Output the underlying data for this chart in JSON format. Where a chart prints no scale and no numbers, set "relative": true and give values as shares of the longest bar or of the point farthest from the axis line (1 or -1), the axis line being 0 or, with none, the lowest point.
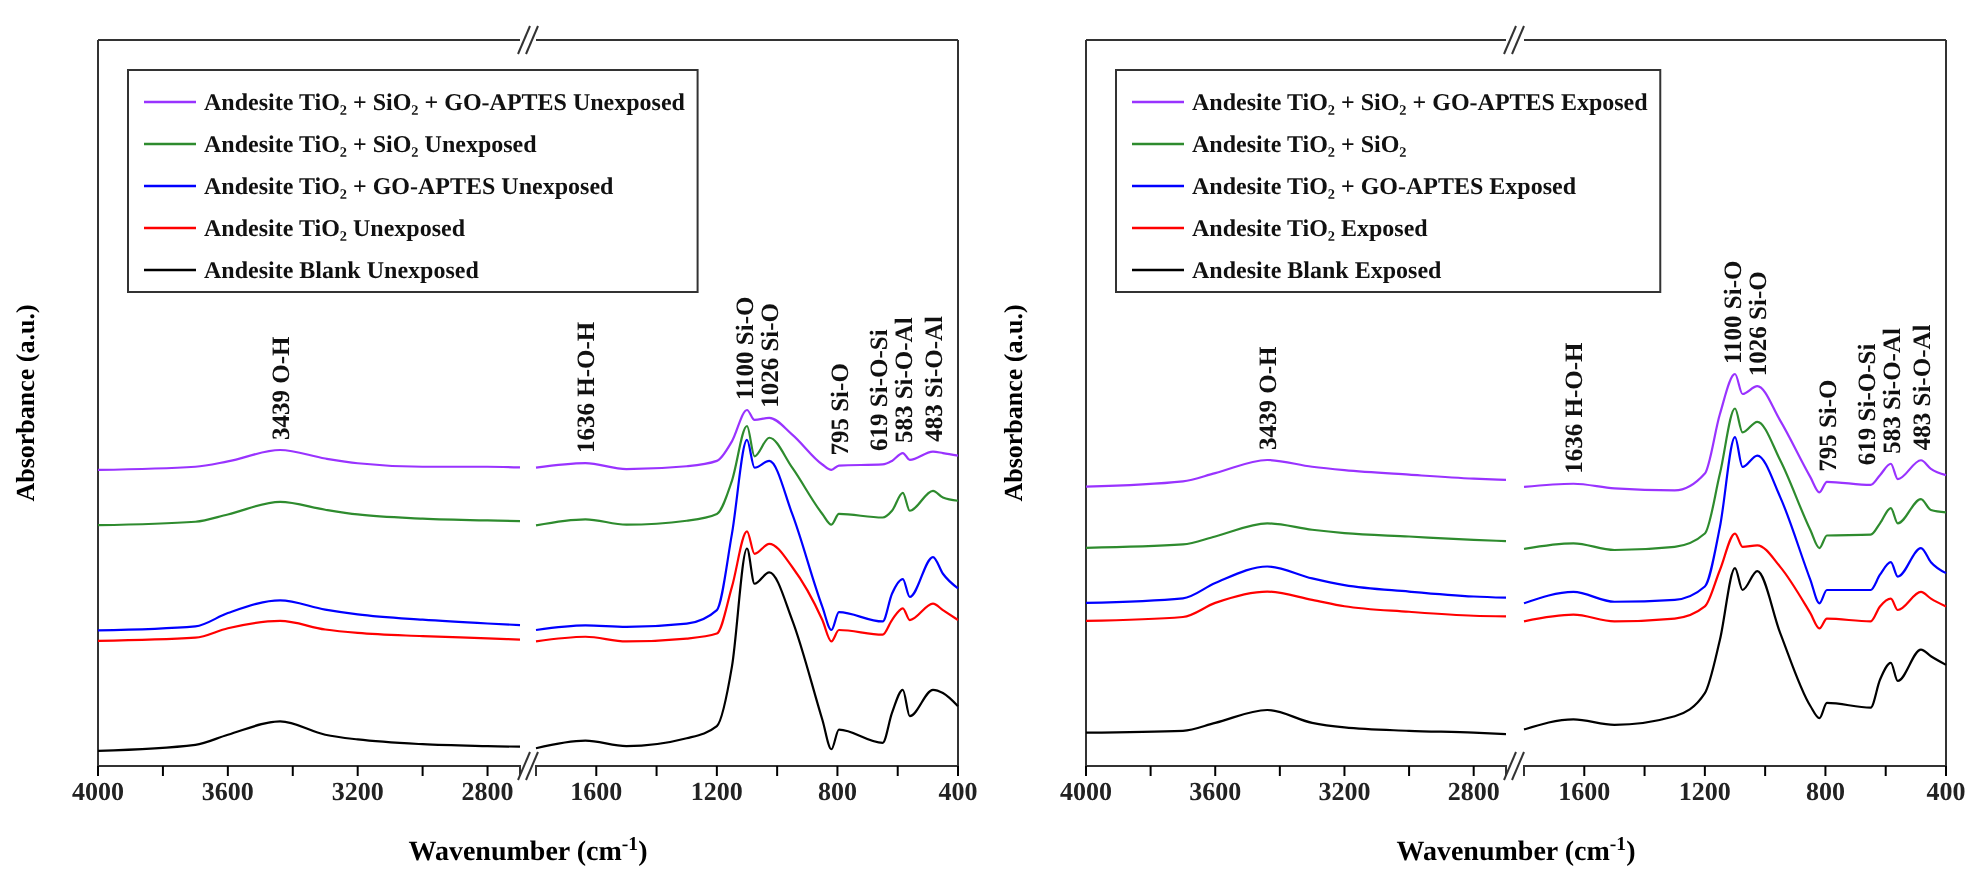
{
  "chart_data": [
    {
      "type": "line",
      "relative": true,
      "ylabel": "Absorbance (a.u.)",
      "xlabel": "Wavenumber (cm$^{-1}$)",
      "legend": "top right",
      "xlim": [
        4000,
        2700
      ],
      "xticks": [
        4000,
        {
          "value": 3800,
          "label": null
        },
        3600,
        {
          "value": 3400,
          "label": null
        },
        3200,
        {
          "value": 3000,
          "label": null
        },
        2800
      ],
      "x": [
        4000,
        3700,
        3600,
        3439,
        3300,
        3200,
        3000,
        2800,
        2700
      ],
      "series": [
        {
          "name": "Andesite TiO₂ + SiO₂ + GO-APTES Unexposed",
          "color": "#9933ff",
          "values": [
            0.937,
            0.947,
            0.964,
            1,
            0.973,
            0.958,
            0.947,
            0.947,
            0.945
          ]
        },
        {
          "name": "Andesite TiO₂ + SiO₂ Unexposed",
          "color": "#2e8b2e",
          "values": [
            0.762,
            0.773,
            0.796,
            0.836,
            0.811,
            0.796,
            0.783,
            0.777,
            0.775
          ]
        },
        {
          "name": "Andesite TiO₂ + GO-APTES Unexposed",
          "color": "#0000ff",
          "values": [
            0.429,
            0.442,
            0.484,
            0.524,
            0.495,
            0.48,
            0.463,
            0.451,
            0.446
          ]
        },
        {
          "name": "Andesite TiO₂ Unexposed",
          "color": "#ff0000",
          "values": [
            0.396,
            0.406,
            0.436,
            0.459,
            0.432,
            0.421,
            0.411,
            0.404,
            0.4
          ]
        },
        {
          "name": "Andesite Blank Unexposed",
          "color": "#000000",
          "values": [
            0.048,
            0.067,
            0.099,
            0.141,
            0.099,
            0.084,
            0.069,
            0.063,
            0.061
          ]
        }
      ],
      "annotations": [
        {
          "text": "3439 O-H",
          "x": 3439,
          "y": 1
        }
      ]
    },
    {
      "type": "line",
      "relative": true,
      "xlim": [
        1800,
        400
      ],
      "xticks": [
        1600,
        {
          "value": 1400,
          "label": null
        },
        1200,
        {
          "value": 1000,
          "label": null
        },
        800,
        {
          "value": 600,
          "label": null
        },
        400
      ],
      "x": [
        1800,
        1636,
        1500,
        1300,
        1200,
        1150,
        1100,
        1075,
        1026,
        950,
        850,
        820,
        795,
        650,
        619,
        583,
        560,
        483,
        450,
        400
      ],
      "series": [
        {
          "color": "#9933ff",
          "values": [
            0.838,
            0.851,
            0.834,
            0.842,
            0.857,
            0.912,
            1,
            0.972,
            0.978,
            0.931,
            0.847,
            0.832,
            0.844,
            0.847,
            0.857,
            0.879,
            0.86,
            0.883,
            0.879,
            0.872
          ]
        },
        {
          "color": "#2e8b2e",
          "values": [
            0.676,
            0.693,
            0.678,
            0.689,
            0.708,
            0.801,
            0.955,
            0.87,
            0.922,
            0.838,
            0.708,
            0.678,
            0.708,
            0.698,
            0.717,
            0.767,
            0.717,
            0.773,
            0.754,
            0.745
          ]
        },
        {
          "color": "#0000ff",
          "values": [
            0.382,
            0.395,
            0.391,
            0.4,
            0.438,
            0.652,
            0.916,
            0.838,
            0.857,
            0.708,
            0.447,
            0.382,
            0.432,
            0.406,
            0.484,
            0.525,
            0.475,
            0.587,
            0.54,
            0.499
          ]
        },
        {
          "color": "#ff0000",
          "values": [
            0.35,
            0.363,
            0.35,
            0.358,
            0.372,
            0.503,
            0.659,
            0.596,
            0.624,
            0.559,
            0.41,
            0.35,
            0.382,
            0.369,
            0.41,
            0.443,
            0.41,
            0.456,
            0.438,
            0.41
          ]
        },
        {
          "color": "#000000",
          "values": [
            0.05,
            0.071,
            0.056,
            0.078,
            0.112,
            0.279,
            0.611,
            0.512,
            0.544,
            0.41,
            0.13,
            0.047,
            0.102,
            0.065,
            0.149,
            0.214,
            0.14,
            0.214,
            0.205,
            0.168
          ]
        }
      ],
      "annotations": [
        {
          "text": "1636 H-O-H",
          "x": 1636,
          "y": 0.851
        },
        {
          "text": "1100 Si-O",
          "x": 1100,
          "y": 1
        },
        {
          "text": "1026 Si-O",
          "x": 1026,
          "y": 0.978
        },
        {
          "text": "795 Si-O",
          "x": 795,
          "y": 0.844
        },
        {
          "text": "619 Si-O-Si",
          "x": 619,
          "y": 0.857
        },
        {
          "text": "583 Si-O-Al",
          "x": 583,
          "y": 0.879
        },
        {
          "text": "483 Si-O-Al",
          "x": 483,
          "y": 0.883
        }
      ]
    },
    {
      "type": "line",
      "relative": true,
      "ylabel": "Absorbance (a.u.)",
      "xlabel": "Wavenumber (cm$^{-1}$)",
      "legend": "top right",
      "xlim": [
        4000,
        2700
      ],
      "xticks": [
        4000,
        {
          "value": 3800,
          "label": null
        },
        3600,
        {
          "value": 3400,
          "label": null
        },
        3200,
        {
          "value": 3000,
          "label": null
        },
        2800
      ],
      "x": [
        4000,
        3700,
        3600,
        3439,
        3300,
        3200,
        3000,
        2800,
        2700
      ],
      "series": [
        {
          "name": "Andesite TiO₂ + SiO₂ + GO-APTES Exposed",
          "color": "#9933ff",
          "values": [
            0.913,
            0.93,
            0.957,
            1,
            0.978,
            0.967,
            0.952,
            0.939,
            0.935
          ]
        },
        {
          "name": "Andesite TiO₂ + SiO₂",
          "color": "#2e8b2e",
          "values": [
            0.713,
            0.724,
            0.75,
            0.793,
            0.772,
            0.761,
            0.75,
            0.739,
            0.735
          ]
        },
        {
          "name": "Andesite TiO₂ + GO-APTES Exposed",
          "color": "#0000ff",
          "values": [
            0.533,
            0.548,
            0.598,
            0.652,
            0.613,
            0.591,
            0.57,
            0.554,
            0.55
          ]
        },
        {
          "name": "Andesite TiO₂ Exposed",
          "color": "#ff0000",
          "values": [
            0.474,
            0.487,
            0.533,
            0.57,
            0.543,
            0.522,
            0.504,
            0.491,
            0.489
          ]
        },
        {
          "name": "Andesite Blank Exposed",
          "color": "#000000",
          "values": [
            0.109,
            0.115,
            0.141,
            0.183,
            0.141,
            0.126,
            0.115,
            0.109,
            0.104
          ]
        }
      ],
      "annotations": [
        {
          "text": "3439 O-H",
          "x": 3439,
          "y": 1
        }
      ]
    },
    {
      "type": "line",
      "relative": true,
      "xlim": [
        1800,
        400
      ],
      "xticks": [
        1600,
        {
          "value": 1400,
          "label": null
        },
        1200,
        {
          "value": 1000,
          "label": null
        },
        800,
        {
          "value": 600,
          "label": null
        },
        400
      ],
      "x": [
        1800,
        1636,
        1500,
        1300,
        1200,
        1150,
        1100,
        1075,
        1026,
        950,
        850,
        820,
        795,
        650,
        619,
        583,
        560,
        483,
        450,
        400
      ],
      "series": [
        {
          "color": "#9933ff",
          "values": [
            0.712,
            0.72,
            0.708,
            0.703,
            0.746,
            0.898,
            1,
            0.949,
            0.969,
            0.881,
            0.737,
            0.698,
            0.725,
            0.717,
            0.742,
            0.771,
            0.732,
            0.78,
            0.758,
            0.742
          ]
        },
        {
          "color": "#2e8b2e",
          "values": [
            0.554,
            0.568,
            0.551,
            0.559,
            0.593,
            0.746,
            0.912,
            0.851,
            0.878,
            0.78,
            0.602,
            0.556,
            0.588,
            0.59,
            0.619,
            0.658,
            0.619,
            0.681,
            0.653,
            0.647
          ]
        },
        {
          "color": "#0000ff",
          "values": [
            0.415,
            0.444,
            0.419,
            0.424,
            0.458,
            0.61,
            0.839,
            0.763,
            0.792,
            0.686,
            0.475,
            0.415,
            0.449,
            0.449,
            0.488,
            0.52,
            0.483,
            0.556,
            0.52,
            0.492
          ]
        },
        {
          "color": "#ff0000",
          "values": [
            0.369,
            0.386,
            0.369,
            0.376,
            0.407,
            0.5,
            0.593,
            0.559,
            0.563,
            0.508,
            0.39,
            0.351,
            0.376,
            0.369,
            0.407,
            0.427,
            0.398,
            0.444,
            0.427,
            0.407
          ]
        },
        {
          "color": "#000000",
          "values": [
            0.093,
            0.119,
            0.105,
            0.127,
            0.186,
            0.322,
            0.505,
            0.449,
            0.497,
            0.339,
            0.153,
            0.122,
            0.161,
            0.149,
            0.22,
            0.263,
            0.217,
            0.297,
            0.28,
            0.258
          ]
        }
      ],
      "annotations": [
        {
          "text": "1636 H-O-H",
          "x": 1636,
          "y": 0.72
        },
        {
          "text": "1100 Si-O",
          "x": 1100,
          "y": 1
        },
        {
          "text": "1026 Si-O",
          "x": 1026,
          "y": 0.969
        },
        {
          "text": "795 Si-O",
          "x": 795,
          "y": 0.725
        },
        {
          "text": "619 Si-O-Si",
          "x": 619,
          "y": 0.742
        },
        {
          "text": "583 Si-O-Al",
          "x": 583,
          "y": 0.771
        },
        {
          "text": "483 Si-O-Al",
          "x": 483,
          "y": 0.78
        }
      ]
    }
  ]
}
